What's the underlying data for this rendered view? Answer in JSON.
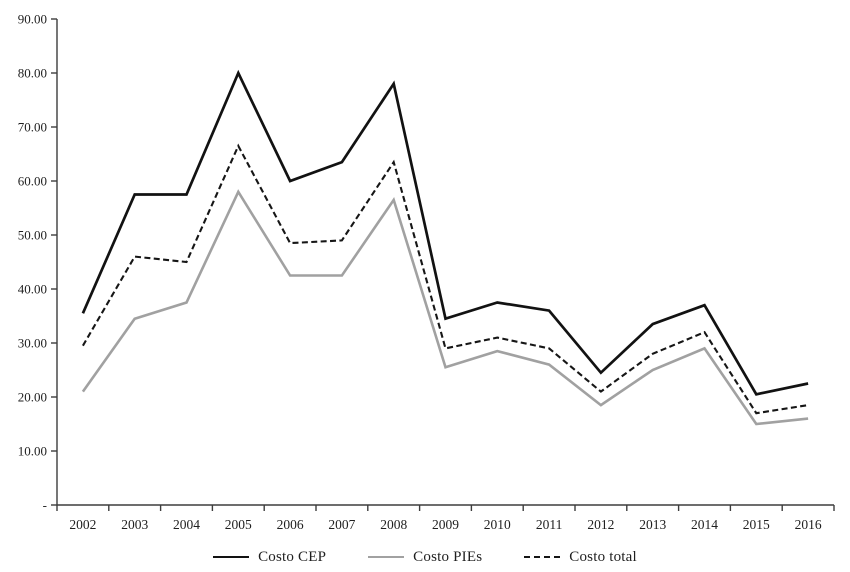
{
  "page": {
    "background": "#ffffff"
  },
  "chart_data": {
    "type": "line",
    "title": "",
    "xlabel": "",
    "ylabel": "",
    "grid": false,
    "legend_position": "bottom",
    "axis_color": "#3d3d3d",
    "text_color": "#1f1f1f",
    "categories": [
      "2002",
      "2003",
      "2004",
      "2005",
      "2006",
      "2007",
      "2008",
      "2009",
      "2010",
      "2011",
      "2012",
      "2013",
      "2014",
      "2015",
      "2016"
    ],
    "y_axis": {
      "min": 0,
      "max": 90,
      "step": 10,
      "tick_labels": [
        "-",
        "10.00",
        "20.00",
        "30.00",
        "40.00",
        "50.00",
        "60.00",
        "70.00",
        "80.00",
        "90.00"
      ]
    },
    "series": [
      {
        "name": "Costo CEP",
        "color": "#121212",
        "dash": "solid",
        "stroke_width": 2.7,
        "values": [
          35.5,
          57.5,
          57.5,
          80.0,
          60.0,
          63.5,
          78.0,
          34.5,
          37.5,
          36.0,
          24.5,
          33.5,
          37.0,
          20.5,
          22.5
        ]
      },
      {
        "name": "Costo PIEs",
        "color": "#a1a1a1",
        "dash": "solid",
        "stroke_width": 2.6,
        "values": [
          21.0,
          34.5,
          37.5,
          58.0,
          42.5,
          42.5,
          56.5,
          25.5,
          28.5,
          26.0,
          18.5,
          25.0,
          29.0,
          15.0,
          16.0
        ]
      },
      {
        "name": "Costo total",
        "color": "#161616",
        "dash": "dashed",
        "stroke_width": 2.1,
        "values": [
          29.5,
          46.0,
          45.0,
          66.5,
          48.5,
          49.0,
          63.5,
          29.0,
          31.0,
          29.0,
          21.0,
          28.0,
          32.0,
          17.0,
          18.5
        ]
      }
    ]
  }
}
